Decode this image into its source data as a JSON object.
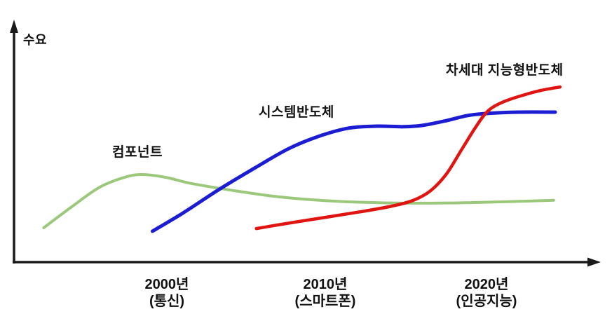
{
  "chart_data": {
    "type": "line",
    "title": "",
    "xlabel": "",
    "ylabel": "수요",
    "grid": false,
    "legend_position": "inline-labels-above-curves",
    "x_range": [
      1991,
      2026.5
    ],
    "y_range": [
      0,
      125
    ],
    "axis_note": "axes unlabeled numerically; y is relative demand (0-100 estimated), x mapped to years from tick labels",
    "axis_color": "#1a1a1a",
    "x_ticks": [
      {
        "year": 2000,
        "line1": "2000년",
        "line2": "(통신)"
      },
      {
        "year": 2010,
        "line1": "2010년",
        "line2": "(스마트폰)"
      },
      {
        "year": 2020,
        "line1": "2020년",
        "line2": "(인공지능)"
      }
    ],
    "series": [
      {
        "name": "컴포넌트",
        "color": "#9CC87C",
        "points": [
          [
            1992.3,
            17.9
          ],
          [
            1994.0,
            28.5
          ],
          [
            1995.8,
            39.0
          ],
          [
            1997.5,
            44.5
          ],
          [
            1998.6,
            45.6
          ],
          [
            2000.0,
            44.0
          ],
          [
            2001.5,
            41.0
          ],
          [
            2004.0,
            37.5
          ],
          [
            2006.5,
            34.5
          ],
          [
            2009.0,
            32.5
          ],
          [
            2012.0,
            31.2
          ],
          [
            2015.5,
            30.7
          ],
          [
            2019.0,
            31.0
          ],
          [
            2024.2,
            32.2
          ]
        ]
      },
      {
        "name": "시스템반도체",
        "color": "#1C1CD2",
        "points": [
          [
            1999.1,
            16.1
          ],
          [
            2001.0,
            25.5
          ],
          [
            2003.3,
            38.0
          ],
          [
            2005.5,
            49.0
          ],
          [
            2007.6,
            59.0
          ],
          [
            2009.5,
            65.5
          ],
          [
            2011.4,
            69.8
          ],
          [
            2013.2,
            70.8
          ],
          [
            2014.8,
            70.5
          ],
          [
            2016.0,
            71.2
          ],
          [
            2017.4,
            73.5
          ],
          [
            2018.8,
            76.3
          ],
          [
            2020.2,
            77.5
          ],
          [
            2022.0,
            78.1
          ],
          [
            2024.3,
            78.1
          ]
        ]
      },
      {
        "name": "차세대 지능형반도체",
        "color": "#E01410",
        "points": [
          [
            2005.6,
            17.5
          ],
          [
            2008.0,
            20.8
          ],
          [
            2010.2,
            23.7
          ],
          [
            2012.4,
            26.6
          ],
          [
            2014.1,
            29.2
          ],
          [
            2015.4,
            32.1
          ],
          [
            2016.5,
            37.2
          ],
          [
            2017.5,
            46.0
          ],
          [
            2018.4,
            58.0
          ],
          [
            2019.3,
            70.0
          ],
          [
            2020.1,
            78.8
          ],
          [
            2021.1,
            83.6
          ],
          [
            2022.4,
            87.2
          ],
          [
            2023.4,
            89.4
          ],
          [
            2024.6,
            91.2
          ]
        ]
      }
    ]
  }
}
